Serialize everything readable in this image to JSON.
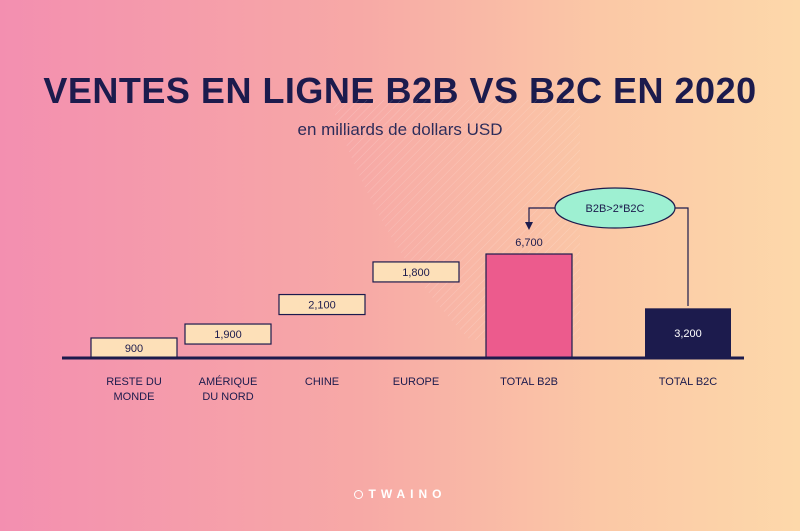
{
  "title": "VENTES EN LIGNE B2B VS B2C EN 2020",
  "subtitle": "en milliards de dollars USD",
  "brand": "TWAINO",
  "colors": {
    "navy": "#1c1b4d",
    "box_fill": "#fde0b8",
    "b2b_fill": "#ec5b8d",
    "b2c_fill": "#1c1b4d",
    "callout_fill": "#9ef0d2"
  },
  "chart_data": {
    "type": "bar",
    "categories": [
      "RESTE DU MONDE",
      "AMÉRIQUE DU NORD",
      "CHINE",
      "EUROPE",
      "TOTAL B2B",
      "TOTAL B2C"
    ],
    "values": [
      900,
      1900,
      2100,
      1800,
      6700,
      3200
    ],
    "value_labels": [
      "900",
      "1,900",
      "2,100",
      "1,800",
      "6,700",
      "3,200"
    ],
    "waterfall_segments": [
      "RESTE DU MONDE",
      "AMÉRIQUE DU NORD",
      "CHINE",
      "EUROPE"
    ],
    "annotation": "B2B>2*B2C"
  }
}
